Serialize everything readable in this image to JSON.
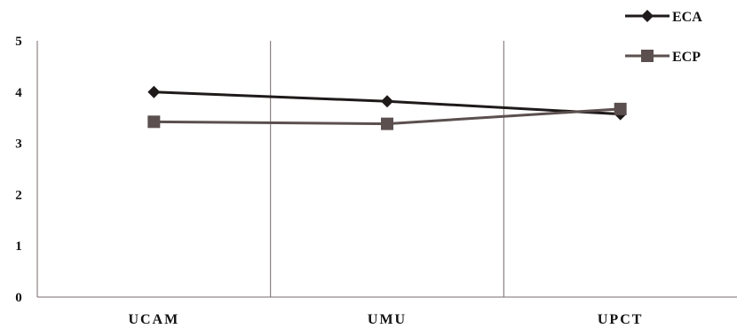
{
  "chart_data": {
    "type": "line",
    "categories": [
      "UCAM",
      "UMU",
      "UPCT"
    ],
    "series": [
      {
        "name": "ECA",
        "values": [
          4.0,
          3.82,
          3.57
        ],
        "color": "#1f1a1a",
        "marker": "diamond"
      },
      {
        "name": "ECP",
        "values": [
          3.42,
          3.38,
          3.67
        ],
        "color": "#5b504f",
        "marker": "square"
      }
    ],
    "yticks": [
      0,
      1,
      2,
      3,
      4,
      5
    ],
    "ylim": [
      0,
      5
    ],
    "title": "",
    "xlabel": "",
    "ylabel": "",
    "grid": "vertical category separators",
    "legend_position": "top-right"
  }
}
